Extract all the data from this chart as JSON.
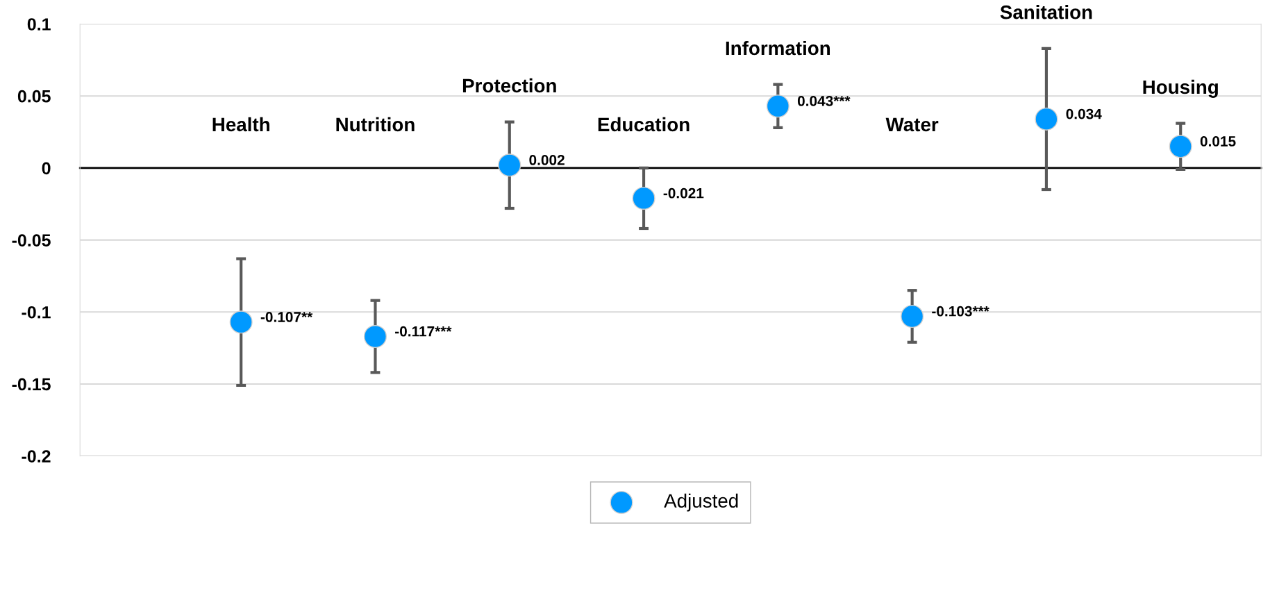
{
  "chart_data": {
    "type": "scatter",
    "categories": [
      "Health",
      "Nutrition",
      "Protection",
      "Education",
      "Information",
      "Water",
      "Sanitation",
      "Housing"
    ],
    "series": [
      {
        "name": "Adjusted",
        "color": "#0099ff",
        "values": [
          -0.107,
          -0.117,
          0.002,
          -0.021,
          0.043,
          -0.103,
          0.034,
          0.015
        ],
        "errors": [
          [
            -0.151,
            -0.063
          ],
          [
            -0.142,
            -0.092
          ],
          [
            -0.028,
            0.032
          ],
          [
            -0.042,
            0.0
          ],
          [
            0.028,
            0.058
          ],
          [
            -0.121,
            -0.085
          ],
          [
            -0.015,
            0.083
          ],
          [
            -0.001,
            0.031
          ]
        ],
        "value_labels": [
          "-0.107**",
          "-0.117***",
          "0.002",
          "-0.021",
          "0.043***",
          "-0.103***",
          "0.034",
          "0.015"
        ]
      }
    ],
    "ylim": [
      -0.2,
      0.1
    ],
    "yticks": [
      -0.2,
      -0.15,
      -0.1,
      -0.05,
      0,
      0.05,
      0.1
    ],
    "grid": "y",
    "legend": "bottom",
    "marker": "circle"
  }
}
